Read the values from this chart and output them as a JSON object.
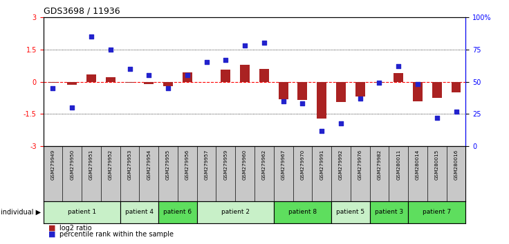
{
  "title": "GDS3698 / 11936",
  "samples": [
    "GSM279949",
    "GSM279950",
    "GSM279951",
    "GSM279952",
    "GSM279953",
    "GSM279954",
    "GSM279955",
    "GSM279956",
    "GSM279957",
    "GSM279959",
    "GSM279960",
    "GSM279962",
    "GSM279967",
    "GSM279970",
    "GSM279991",
    "GSM279992",
    "GSM279976",
    "GSM279982",
    "GSM280011",
    "GSM280014",
    "GSM280015",
    "GSM280016"
  ],
  "log2_ratio": [
    -0.05,
    -0.15,
    0.35,
    0.2,
    -0.05,
    -0.1,
    -0.2,
    0.45,
    0.0,
    0.55,
    0.8,
    0.6,
    -0.8,
    -0.85,
    -1.7,
    -0.95,
    -0.7,
    -0.05,
    0.4,
    -0.9,
    -0.75,
    -0.5
  ],
  "percentile": [
    45,
    30,
    85,
    75,
    60,
    55,
    45,
    55,
    65,
    67,
    78,
    80,
    35,
    33,
    12,
    18,
    37,
    49,
    62,
    48,
    22,
    27
  ],
  "patients": [
    {
      "label": "patient 1",
      "start": 0,
      "end": 4,
      "color": "#c8f0c8"
    },
    {
      "label": "patient 4",
      "start": 4,
      "end": 6,
      "color": "#c8f0c8"
    },
    {
      "label": "patient 6",
      "start": 6,
      "end": 8,
      "color": "#5ede5e"
    },
    {
      "label": "patient 2",
      "start": 8,
      "end": 12,
      "color": "#c8f0c8"
    },
    {
      "label": "patient 8",
      "start": 12,
      "end": 15,
      "color": "#5ede5e"
    },
    {
      "label": "patient 5",
      "start": 15,
      "end": 17,
      "color": "#c8f0c8"
    },
    {
      "label": "patient 3",
      "start": 17,
      "end": 19,
      "color": "#5ede5e"
    },
    {
      "label": "patient 7",
      "start": 19,
      "end": 22,
      "color": "#5ede5e"
    }
  ],
  "ylim_left": [
    -3,
    3
  ],
  "ylim_right": [
    0,
    100
  ],
  "yticks_left": [
    -3,
    -1.5,
    0,
    1.5,
    3
  ],
  "ytick_labels_left": [
    "-3",
    "-1.5",
    "0",
    "1.5",
    "3"
  ],
  "yticks_right": [
    0,
    25,
    50,
    75,
    100
  ],
  "ytick_labels_right": [
    "0",
    "25",
    "50",
    "75",
    "100%"
  ],
  "bar_color": "#aa2222",
  "dot_color": "#2222cc",
  "bar_width": 0.5,
  "dot_size": 14,
  "sample_bg": "#c8c8c8",
  "legend_bar_label": "log2 ratio",
  "legend_dot_label": "percentile rank within the sample"
}
